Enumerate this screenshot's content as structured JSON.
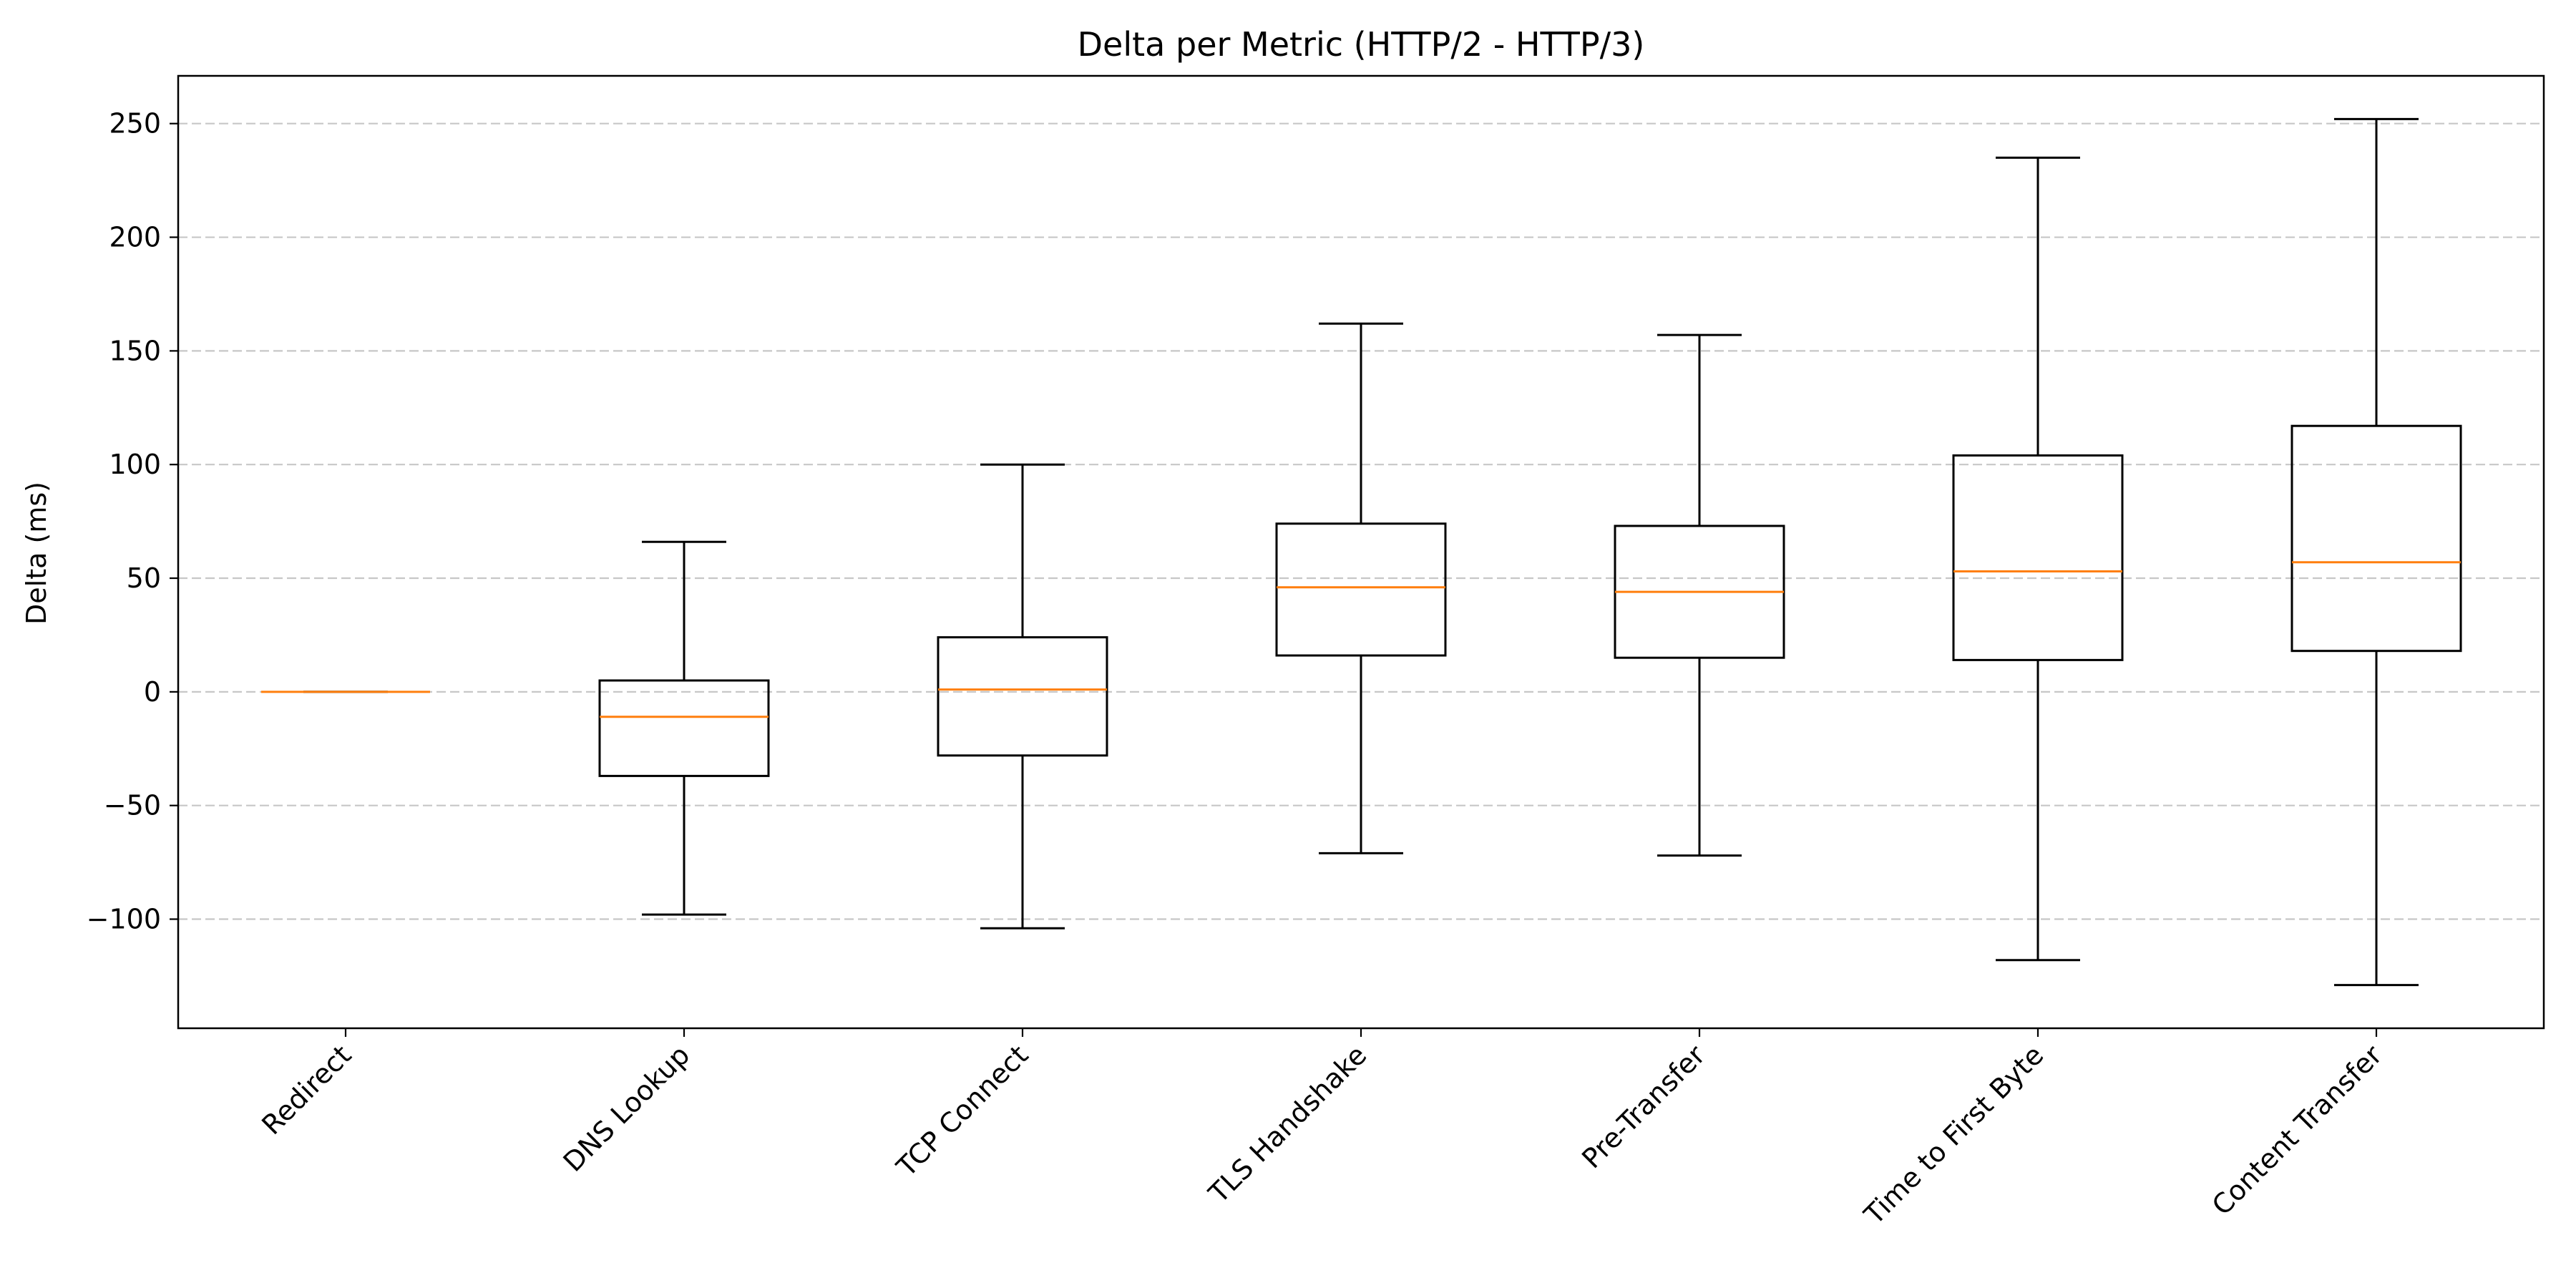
{
  "chart_data": {
    "type": "box",
    "title": "Delta per Metric (HTTP/2 - HTTP/3)",
    "xlabel": "",
    "ylabel": "Delta (ms)",
    "ylim": [
      -148,
      271
    ],
    "yticks": [
      -100,
      -50,
      0,
      50,
      100,
      150,
      200,
      250
    ],
    "ytick_labels": [
      "−100",
      "−50",
      "0",
      "50",
      "100",
      "150",
      "200",
      "250"
    ],
    "grid": "y",
    "colors": {
      "box": "#000000",
      "median": "#ff7f0e",
      "grid": "#b0b0b0"
    },
    "categories": [
      "Redirect",
      "DNS Lookup",
      "TCP Connect",
      "TLS Handshake",
      "Pre-Transfer",
      "Time to First Byte",
      "Content Transfer"
    ],
    "boxes": [
      {
        "whisker_low": 0,
        "q1": 0,
        "median": 0,
        "q3": 0,
        "whisker_high": 0
      },
      {
        "whisker_low": -98,
        "q1": -37,
        "median": -11,
        "q3": 5,
        "whisker_high": 66
      },
      {
        "whisker_low": -104,
        "q1": -28,
        "median": 1,
        "q3": 24,
        "whisker_high": 100
      },
      {
        "whisker_low": -71,
        "q1": 16,
        "median": 46,
        "q3": 74,
        "whisker_high": 162
      },
      {
        "whisker_low": -72,
        "q1": 15,
        "median": 44,
        "q3": 73,
        "whisker_high": 157
      },
      {
        "whisker_low": -118,
        "q1": 14,
        "median": 53,
        "q3": 104,
        "whisker_high": 235
      },
      {
        "whisker_low": -129,
        "q1": 18,
        "median": 57,
        "q3": 117,
        "whisker_high": 252
      }
    ]
  }
}
